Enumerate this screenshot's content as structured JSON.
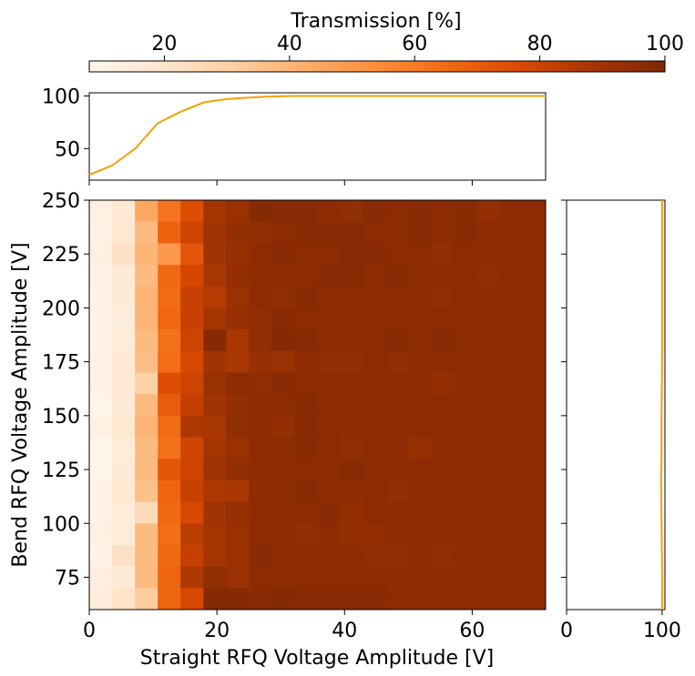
{
  "colorbar": {
    "label": "Transmission [%]",
    "range": [
      8,
      100
    ],
    "ticks": [
      "20",
      "40",
      "60",
      "80",
      "100"
    ],
    "tick_values": [
      20,
      40,
      60,
      80,
      100
    ],
    "colors": [
      "#fff5eb",
      "#fee6ce",
      "#fdd0a2",
      "#fdae6b",
      "#fd8d3c",
      "#f16913",
      "#d94801",
      "#a63603",
      "#7f2704"
    ]
  },
  "chart_data": [
    {
      "type": "heatmap",
      "name": "main",
      "xlabel": "Straight RFQ Voltage Amplitude [V]",
      "ylabel": "Bend RFQ Voltage Amplitude [V]",
      "xlim": [
        0,
        71.5
      ],
      "ylim": [
        60,
        250
      ],
      "x_edges": [
        0,
        3.58,
        7.15,
        10.73,
        14.3,
        17.88,
        21.45,
        25.03,
        28.6,
        32.18,
        35.75,
        39.33,
        42.9,
        46.48,
        50.05,
        53.63,
        57.2,
        60.78,
        64.35,
        67.93,
        71.5
      ],
      "y_edges": [
        60,
        70,
        80,
        90,
        100,
        110,
        120,
        130,
        140,
        150,
        160,
        170,
        180,
        190,
        200,
        210,
        220,
        230,
        240,
        250
      ],
      "xticks": [
        "0",
        "20",
        "40",
        "60"
      ],
      "xtick_values": [
        0,
        20,
        40,
        60
      ],
      "yticks": [
        "75",
        "100",
        "125",
        "150",
        "175",
        "200",
        "225",
        "250"
      ],
      "ytick_values": [
        75,
        100,
        125,
        150,
        175,
        200,
        225,
        250
      ],
      "z_rows_top_to_bottom": [
        [
          12,
          17,
          45,
          62,
          75,
          89,
          92,
          98,
          97,
          97,
          96,
          95,
          97,
          96,
          97,
          96,
          97,
          94,
          96,
          96
        ],
        [
          11,
          18,
          38,
          68,
          80,
          90,
          94,
          95,
          96,
          97,
          97,
          97,
          96,
          96,
          97,
          96,
          97,
          96,
          96,
          96
        ],
        [
          12,
          22,
          40,
          50,
          72,
          90,
          93,
          96,
          97,
          96,
          96,
          97,
          97,
          96,
          96,
          95,
          96,
          96,
          96,
          96
        ],
        [
          11,
          16,
          38,
          66,
          78,
          88,
          94,
          96,
          96,
          96,
          97,
          97,
          96,
          97,
          96,
          96,
          96,
          95,
          96,
          96
        ],
        [
          10,
          16,
          40,
          65,
          81,
          85,
          92,
          96,
          95,
          97,
          96,
          96,
          96,
          96,
          96,
          95,
          96,
          96,
          96,
          96
        ],
        [
          10,
          14,
          40,
          66,
          81,
          89,
          93,
          95,
          97,
          96,
          96,
          96,
          96,
          96,
          96,
          96,
          96,
          96,
          96,
          96
        ],
        [
          10,
          15,
          38,
          63,
          80,
          98,
          88,
          95,
          98,
          97,
          96,
          96,
          96,
          97,
          96,
          97,
          96,
          96,
          96,
          96
        ],
        [
          11,
          17,
          37,
          64,
          77,
          90,
          88,
          93,
          92,
          96,
          95,
          95,
          96,
          95,
          96,
          96,
          96,
          96,
          96,
          96
        ],
        [
          11,
          17,
          30,
          75,
          80,
          92,
          96,
          95,
          97,
          96,
          96,
          96,
          96,
          96,
          96,
          94,
          96,
          96,
          96,
          96
        ],
        [
          9,
          16,
          38,
          70,
          82,
          90,
          94,
          96,
          96,
          97,
          96,
          96,
          96,
          96,
          96,
          96,
          96,
          96,
          96,
          96
        ],
        [
          12,
          18,
          40,
          65,
          87,
          88,
          95,
          96,
          94,
          97,
          96,
          96,
          96,
          96,
          96,
          96,
          96,
          96,
          96,
          96
        ],
        [
          8,
          15,
          38,
          63,
          79,
          89,
          92,
          96,
          96,
          97,
          96,
          95,
          96,
          96,
          93,
          96,
          96,
          96,
          96,
          96
        ],
        [
          9,
          16,
          38,
          72,
          80,
          91,
          94,
          96,
          96,
          96,
          96,
          97,
          96,
          96,
          96,
          96,
          96,
          96,
          96,
          96
        ],
        [
          10,
          18,
          36,
          67,
          81,
          87,
          88,
          96,
          96,
          97,
          96,
          96,
          96,
          95,
          96,
          96,
          96,
          96,
          96,
          96
        ],
        [
          10,
          15,
          25,
          66,
          77,
          90,
          93,
          96,
          96,
          96,
          97,
          94,
          96,
          96,
          96,
          96,
          96,
          96,
          96,
          96
        ],
        [
          12,
          15,
          38,
          64,
          84,
          89,
          92,
          96,
          96,
          95,
          96,
          94,
          94,
          96,
          96,
          96,
          96,
          96,
          96,
          96
        ],
        [
          10,
          22,
          38,
          66,
          82,
          89,
          92,
          97,
          96,
          96,
          96,
          96,
          95,
          95,
          96,
          95,
          96,
          96,
          96,
          96
        ],
        [
          13,
          16,
          38,
          67,
          87,
          95,
          92,
          96,
          96,
          96,
          96,
          96,
          96,
          96,
          96,
          96,
          96,
          96,
          96,
          96
        ],
        [
          14,
          21,
          32,
          67,
          77,
          98,
          98,
          97,
          98,
          97,
          97,
          97,
          97,
          96,
          96,
          96,
          96,
          96,
          96,
          96
        ]
      ]
    },
    {
      "type": "line",
      "name": "top-marginal",
      "ylim": [
        20,
        103
      ],
      "yticks": [
        "50",
        "100"
      ],
      "ytick_values": [
        50,
        100
      ],
      "x": [
        0,
        3.6,
        7.2,
        10.7,
        14.3,
        18,
        21.5,
        25,
        28.6,
        32,
        36,
        40,
        50,
        60,
        71.5
      ],
      "y": [
        25,
        34,
        50,
        74,
        85,
        94,
        97,
        98.5,
        99.5,
        100,
        100,
        100,
        100,
        100,
        100
      ],
      "color": "#f5a000"
    },
    {
      "type": "line",
      "name": "right-marginal",
      "xlim": [
        0,
        103
      ],
      "xticks": [
        "0",
        "100"
      ],
      "xtick_values": [
        0,
        100
      ],
      "x": [
        100,
        100,
        99.5,
        99,
        99.5,
        99.5,
        100,
        100,
        100
      ],
      "y": [
        60,
        75,
        100,
        120,
        130,
        150,
        180,
        220,
        250
      ],
      "color": "#f5a000"
    }
  ]
}
